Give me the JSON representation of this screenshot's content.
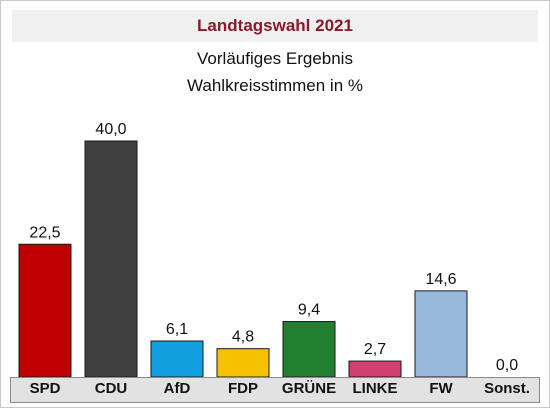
{
  "chart_data": {
    "type": "bar",
    "title": "Landtagswahl 2021",
    "subtitle": [
      "Vorläufiges Ergebnis",
      "Wahlkreisstimmen in %"
    ],
    "categories": [
      "SPD",
      "CDU",
      "AfD",
      "FDP",
      "GRÜNE",
      "LINKE",
      "FW",
      "Sonst."
    ],
    "values": [
      22.5,
      40.0,
      6.1,
      4.8,
      9.4,
      2.7,
      14.6,
      0.0
    ],
    "value_labels": [
      "22,5",
      "40,0",
      "6,1",
      "4,8",
      "9,4",
      "2,7",
      "14,6",
      "0,0"
    ],
    "colors": [
      "#c00000",
      "#404040",
      "#10a0e0",
      "#f5c000",
      "#208030",
      "#d04070",
      "#98b8dc",
      "#ffffff"
    ],
    "ylim": [
      0,
      40
    ],
    "grid": false,
    "legend": "none",
    "xlabel": "",
    "ylabel": ""
  }
}
